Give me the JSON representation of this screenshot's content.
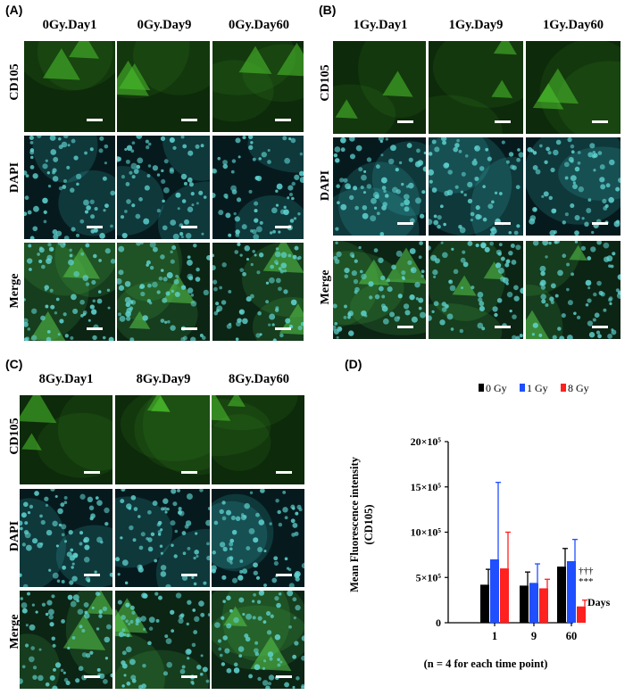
{
  "panels": {
    "A": {
      "letter": "(A)",
      "columns": [
        "0Gy.Day1",
        "0Gy.Day9",
        "0Gy.Day60"
      ],
      "rows": [
        "CD105",
        "DAPI",
        "Merge"
      ]
    },
    "B": {
      "letter": "(B)",
      "columns": [
        "1Gy.Day1",
        "1Gy.Day9",
        "1Gy.Day60"
      ],
      "rows": [
        "CD105",
        "DAPI",
        "Merge"
      ]
    },
    "C": {
      "letter": "(C)",
      "columns": [
        "8Gy.Day1",
        "8Gy.Day9",
        "8Gy.Day60"
      ],
      "rows": [
        "CD105",
        "DAPI",
        "Merge"
      ]
    },
    "D": {
      "letter": "(D)"
    }
  },
  "colors": {
    "cd105_dark": "#0d2a0a",
    "cd105_bright": "#3fa42a",
    "dapi_dark": "#061a1e",
    "dapi_bright": "#3fc4c4",
    "merge_dark": "#0c2414",
    "merge_bright": "#47b04a"
  },
  "chart_data": {
    "type": "bar",
    "categories": [
      "1",
      "9",
      "60"
    ],
    "series": [
      {
        "name": "0 Gy",
        "color": "#000000",
        "values": [
          420000,
          410000,
          620000
        ],
        "errors": [
          170000,
          150000,
          200000
        ]
      },
      {
        "name": "1 Gy",
        "color": "#1f4fff",
        "values": [
          700000,
          440000,
          680000
        ],
        "errors": [
          850000,
          210000,
          240000
        ]
      },
      {
        "name": "8 Gy",
        "color": "#ff2020",
        "values": [
          600000,
          380000,
          180000
        ],
        "errors": [
          400000,
          100000,
          70000
        ]
      }
    ],
    "ylabel_line1": "Mean Fluorescence intensity",
    "ylabel_line2": "(CD105)",
    "xlabel": "Days",
    "ylim": [
      0,
      2000000
    ],
    "yticks": [
      {
        "value": 0,
        "label": "0"
      },
      {
        "value": 500000,
        "label": "5×10⁵"
      },
      {
        "value": 1000000,
        "label": "10×10⁵"
      },
      {
        "value": 1500000,
        "label": "15×10⁵"
      },
      {
        "value": 2000000,
        "label": "20×10⁵"
      }
    ],
    "annotation_line1": "†††",
    "annotation_line2": "***",
    "footnote": "(n = 4 for each time point)",
    "legend_placement": "top"
  }
}
